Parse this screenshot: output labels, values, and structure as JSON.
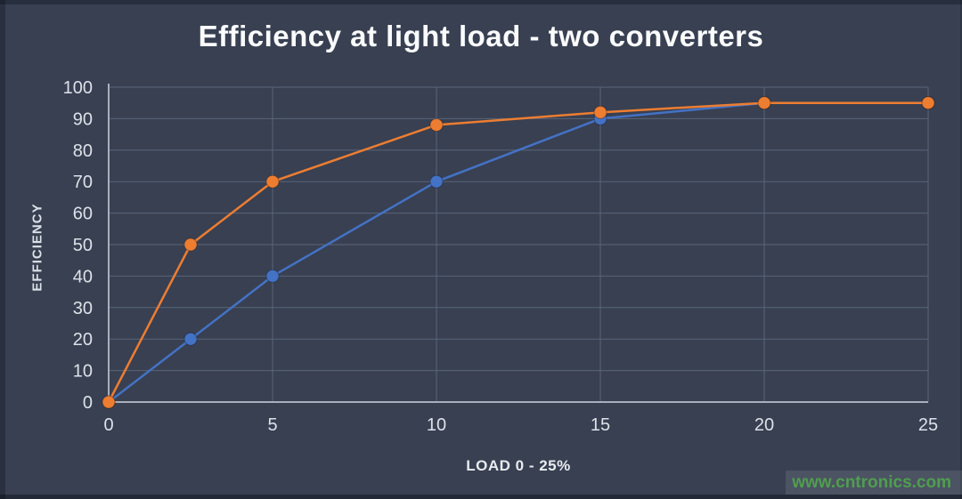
{
  "page": {
    "background": "#384052",
    "edge_color": "#1f2532"
  },
  "chart_data": {
    "type": "line",
    "title": "Efficiency at light load - two converters",
    "xlabel": "LOAD 0 - 25%",
    "ylabel": "EFFICIENCY",
    "xlim": [
      0,
      25
    ],
    "ylim": [
      0,
      100
    ],
    "xticks": [
      0,
      5,
      10,
      15,
      20,
      25
    ],
    "yticks": [
      0,
      10,
      20,
      30,
      40,
      50,
      60,
      70,
      80,
      90,
      100
    ],
    "grid": true,
    "legend_position": "none",
    "x": [
      0,
      2.5,
      5,
      10,
      15,
      20,
      25
    ],
    "series": [
      {
        "id": "converter-blue",
        "color": "#4472C4",
        "values": [
          0,
          20,
          40,
          70,
          90,
          95,
          95
        ]
      },
      {
        "id": "converter-orange",
        "color": "#ED7D31",
        "values": [
          0,
          50,
          70,
          88,
          92,
          95,
          95
        ]
      }
    ],
    "colors": {
      "gridline": "#5b6578",
      "axis": "#a8b0bd",
      "tick_text": "#dde1e8",
      "title_text": "#fafbfc"
    }
  },
  "watermark": {
    "text": "www.cntronics.com",
    "color": "#4f9e4f"
  }
}
